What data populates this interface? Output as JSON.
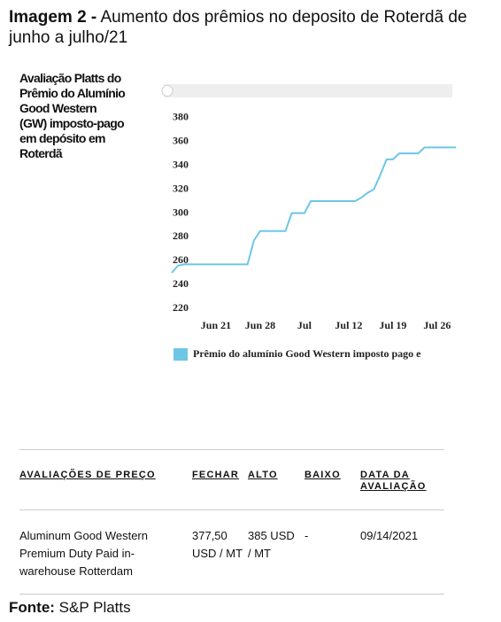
{
  "header": {
    "title_bold": "Imagem 2 -",
    "title": "Aumento dos prêmios no deposito de Roterdã de junho a julho/21"
  },
  "caption": "Avaliação Platts do Prêmio do Alumínio Good Western (GW) imposto-pago em depósito em Roterdã",
  "chart_data": {
    "type": "line",
    "categories": [
      null,
      null,
      null,
      null,
      null,
      null,
      null,
      "Jun 21",
      null,
      null,
      null,
      null,
      null,
      null,
      "Jun 28",
      null,
      null,
      null,
      null,
      null,
      null,
      "Jul",
      null,
      null,
      null,
      null,
      null,
      null,
      "Jul 12",
      null,
      null,
      null,
      null,
      null,
      null,
      "Jul 19",
      null,
      null,
      null,
      null,
      null,
      null,
      "Jul 26",
      null,
      null,
      null
    ],
    "series": [
      {
        "name": "Prêmio do alumínio Good Western imposto pago e",
        "color": "#6ec6e6",
        "values": [
          250,
          256,
          257,
          257,
          257,
          257,
          257,
          257,
          257,
          257,
          257,
          257,
          257,
          277,
          285,
          285,
          285,
          285,
          285,
          300,
          300,
          300,
          310,
          310,
          310,
          310,
          310,
          310,
          310,
          310,
          313,
          317,
          320,
          332,
          345,
          345,
          350,
          350,
          350,
          350,
          355,
          355,
          355,
          355,
          355,
          355
        ]
      }
    ],
    "ylim": [
      215,
      385
    ],
    "yticks": [
      220,
      240,
      260,
      280,
      300,
      320,
      340,
      360,
      380
    ],
    "grid": false
  },
  "table": {
    "headers": [
      "AVALIAÇÕES DE PREÇO",
      "FECHAR",
      "ALTO",
      "BAIXO",
      "DATA DA AVALIAÇÃO"
    ],
    "rows": [
      [
        "Aluminum Good Western Premium Duty Paid in-warehouse Rotterdam",
        "377,50 USD / MT",
        "385 USD / MT",
        "-",
        "09/14/2021"
      ]
    ]
  },
  "footer": {
    "label": "Fonte:",
    "text": "S&P Platts"
  }
}
